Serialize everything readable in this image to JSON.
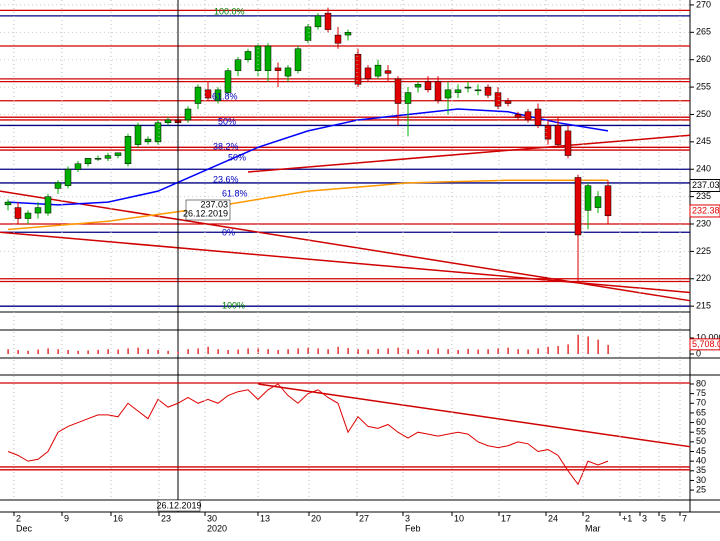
{
  "chart_data": [
    {
      "type": "candlestick",
      "open": [
        233.5,
        233,
        231,
        232,
        232,
        236.5,
        237,
        240,
        241,
        242,
        242,
        242.5,
        241,
        244.5,
        245,
        245,
        248.5,
        249,
        249,
        252,
        254.5,
        252.5,
        254,
        258,
        260,
        258,
        258,
        258.5,
        257,
        258,
        263.5,
        266,
        268.5,
        264.5,
        264.5,
        261,
        258.5,
        257,
        258,
        256.5,
        252,
        255,
        256,
        256,
        253,
        254,
        255,
        254.5,
        255,
        254,
        252.5,
        250,
        250.5,
        251,
        248,
        248,
        247,
        238.5,
        232.5,
        233,
        237
      ],
      "high": [
        234.5,
        234,
        232.5,
        234,
        235.5,
        238,
        240.5,
        241.5,
        242,
        242.5,
        243,
        243,
        246.5,
        248.5,
        246,
        249,
        249.5,
        249.5,
        251.5,
        255.5,
        256,
        255,
        258.5,
        260.5,
        262,
        263,
        263,
        259.5,
        259,
        262.5,
        266.5,
        268.5,
        269.5,
        266,
        265.5,
        262,
        259,
        260,
        259,
        257,
        255,
        256,
        257,
        257,
        256,
        255.5,
        256,
        255.5,
        255.5,
        255,
        253,
        250.5,
        251,
        252,
        249,
        249.5,
        248,
        239,
        237.5,
        236,
        238
      ],
      "low": [
        232.5,
        230,
        230,
        231,
        231.5,
        235.5,
        236.5,
        239.5,
        240.5,
        241.5,
        241.5,
        242,
        240.5,
        244,
        244.5,
        244.5,
        248,
        248,
        248.5,
        251,
        252.5,
        252,
        253.5,
        257,
        259.5,
        257,
        256,
        255,
        256,
        257.5,
        263,
        265.5,
        265,
        262,
        263.5,
        255,
        256,
        256.5,
        256,
        248,
        246,
        254,
        254,
        252,
        250,
        253,
        254,
        253.5,
        253,
        251,
        251.5,
        249,
        248.5,
        247.5,
        244.5,
        244,
        242,
        219.5,
        229,
        232,
        230
      ],
      "close": [
        234,
        231,
        232,
        233,
        235,
        237.5,
        240,
        241,
        242,
        242,
        242.5,
        243,
        246,
        248,
        245.5,
        248.5,
        249,
        248.5,
        251,
        255,
        253,
        254.5,
        258,
        260,
        261.5,
        262.5,
        262.5,
        258,
        258.5,
        262,
        266,
        268,
        265.5,
        263,
        265,
        255.5,
        256.5,
        259,
        257.5,
        252,
        254,
        255.5,
        254.5,
        252.5,
        254.5,
        254.5,
        255,
        254.5,
        253.5,
        251.5,
        252,
        249.5,
        249,
        248,
        245.5,
        244.5,
        242.5,
        228,
        237,
        235,
        231.5
      ],
      "up_color": "#00b000",
      "down_color": "#e00000",
      "xlim": [
        -0.8,
        68.2
      ],
      "ylim": [
        214.3,
        270.9
      ],
      "yticks": [
        215,
        220,
        225,
        230,
        235,
        240,
        245,
        250,
        255,
        260,
        265,
        270
      ],
      "hlines": [
        {
          "value": 269,
          "color": "#d00000"
        },
        {
          "value": 268,
          "color": "#000080"
        },
        {
          "value": 262.5,
          "color": "#d00000"
        },
        {
          "value": 256.5,
          "color": "#d00000"
        },
        {
          "value": 256,
          "color": "#d00000"
        },
        {
          "value": 252.5,
          "color": "#d00000"
        },
        {
          "value": 249.5,
          "color": "#d00000"
        },
        {
          "value": 249,
          "color": "#d00000"
        },
        {
          "value": 248,
          "color": "#000080"
        },
        {
          "value": 244,
          "color": "#d00000"
        },
        {
          "value": 243.5,
          "color": "#d00000"
        },
        {
          "value": 240,
          "color": "#000080"
        },
        {
          "value": 237.5,
          "color": "#000080"
        },
        {
          "value": 230,
          "color": "#d00000"
        },
        {
          "value": 228.5,
          "color": "#000080"
        },
        {
          "value": 220,
          "color": "#d00000"
        },
        {
          "value": 219.5,
          "color": "#d00000"
        },
        {
          "value": 215,
          "color": "#000080"
        }
      ],
      "trendlines": [
        {
          "x": [
            -0.8,
            68.2
          ],
          "y": [
            236,
            216
          ],
          "color": "#d00000"
        },
        {
          "x": [
            -0.8,
            68.2
          ],
          "y": [
            228.5,
            217.5
          ],
          "color": "#d00000"
        },
        {
          "x": [
            24,
            68.2
          ],
          "y": [
            239.5,
            246.2
          ],
          "color": "#d00000"
        }
      ],
      "series": [
        {
          "color": "#0000ff",
          "x": [
            0,
            5,
            10,
            15,
            20,
            25,
            30,
            35,
            40,
            45,
            50,
            55,
            60
          ],
          "values": [
            234,
            233.5,
            234,
            236,
            240,
            244,
            247,
            249,
            250,
            251,
            250.5,
            248.5,
            247
          ]
        },
        {
          "color": "#ff9900",
          "x": [
            0,
            10,
            20,
            30,
            40,
            50,
            60
          ],
          "values": [
            229,
            230.5,
            233,
            236,
            237.5,
            238,
            238
          ]
        }
      ],
      "fib_labels": [
        "100.0%",
        "61.8%",
        "50%",
        "38.2%",
        "50%",
        "23.6%",
        "61.8%",
        "0%",
        "100%"
      ],
      "last_value": 232.38,
      "cursor": {
        "x": 17,
        "price": 237.03,
        "date": "26.12.2019"
      },
      "grid": true
    },
    {
      "type": "bar",
      "color": "#e00000",
      "values": [
        3000,
        2500,
        2000,
        2800,
        3500,
        3000,
        2500,
        2000,
        2200,
        2600,
        3000,
        2800,
        3500,
        4000,
        3000,
        2500,
        2000,
        1500,
        3000,
        3500,
        4500,
        3000,
        2500,
        2800,
        3500,
        4000,
        3000,
        2500,
        3000,
        3500,
        4000,
        3500,
        3000,
        4500,
        3800,
        3000,
        2800,
        3200,
        3500,
        4000,
        3000,
        2500,
        2800,
        3500,
        3000,
        2500,
        3200,
        2800,
        3000,
        3500,
        4000,
        3000,
        2800,
        3500,
        4500,
        5000,
        6000,
        12000,
        11000,
        9000,
        5708
      ],
      "ylim": [
        0,
        26250
      ],
      "yticks": [
        {
          "value": 10000,
          "label": "10,000.0"
        },
        0
      ],
      "last_value": 5708,
      "last_value_label": "5,708.0"
    },
    {
      "type": "line",
      "color": "#e00000",
      "values": [
        45,
        43,
        40,
        41,
        45,
        55,
        58,
        60,
        62,
        64,
        64,
        63,
        70,
        66,
        62,
        72,
        68,
        70,
        73,
        70,
        72,
        70,
        74,
        76,
        77,
        72,
        77,
        80,
        74,
        70,
        75,
        77,
        73,
        70,
        55,
        63,
        58,
        57,
        59,
        55,
        52,
        55,
        54,
        53,
        54,
        55,
        54,
        50,
        48,
        47,
        48,
        50,
        49,
        45,
        46,
        43,
        35,
        28,
        40,
        38,
        40
      ],
      "ylim": [
        20.9,
        83.1
      ],
      "yticks": [
        25,
        30,
        35,
        40,
        45,
        50,
        55,
        60,
        65,
        70,
        75,
        80
      ],
      "hlines": [
        {
          "value": 80.5,
          "color": "#d00000"
        },
        {
          "value": 37,
          "color": "#d00000"
        },
        {
          "value": 35.5,
          "color": "#d00000"
        }
      ],
      "trendlines": [
        {
          "x": [
            25,
            68.2
          ],
          "y": [
            80,
            47.5
          ],
          "color": "#d00000"
        }
      ],
      "xticks": [
        {
          "value": 0.6,
          "label": "2"
        },
        {
          "value": 5.4,
          "label": "9"
        },
        {
          "value": 10.3,
          "label": "16"
        },
        {
          "value": 15.1,
          "label": "23"
        },
        {
          "value": 19.7,
          "label": "30"
        },
        {
          "value": 25,
          "label": "13"
        },
        {
          "value": 30.1,
          "label": "20"
        },
        {
          "value": 34.9,
          "label": "27"
        },
        {
          "value": 39.5,
          "label": "3"
        },
        {
          "value": 44.4,
          "label": "10"
        },
        {
          "value": 49.1,
          "label": "17"
        },
        {
          "value": 53.8,
          "label": "24"
        },
        {
          "value": 57.5,
          "label": "2"
        },
        {
          "value": 61.2,
          "label": "+1"
        },
        {
          "value": 63.2,
          "label": "3"
        },
        {
          "value": 65.1,
          "label": "5"
        },
        {
          "value": 67.2,
          "label": "7"
        }
      ],
      "month_labels": [
        {
          "value": 0.6,
          "label": "Dec"
        },
        {
          "value": 19.7,
          "label": "2020"
        },
        {
          "value": 39.5,
          "label": "Feb"
        },
        {
          "value": 57.5,
          "label": "Mar"
        }
      ]
    }
  ]
}
